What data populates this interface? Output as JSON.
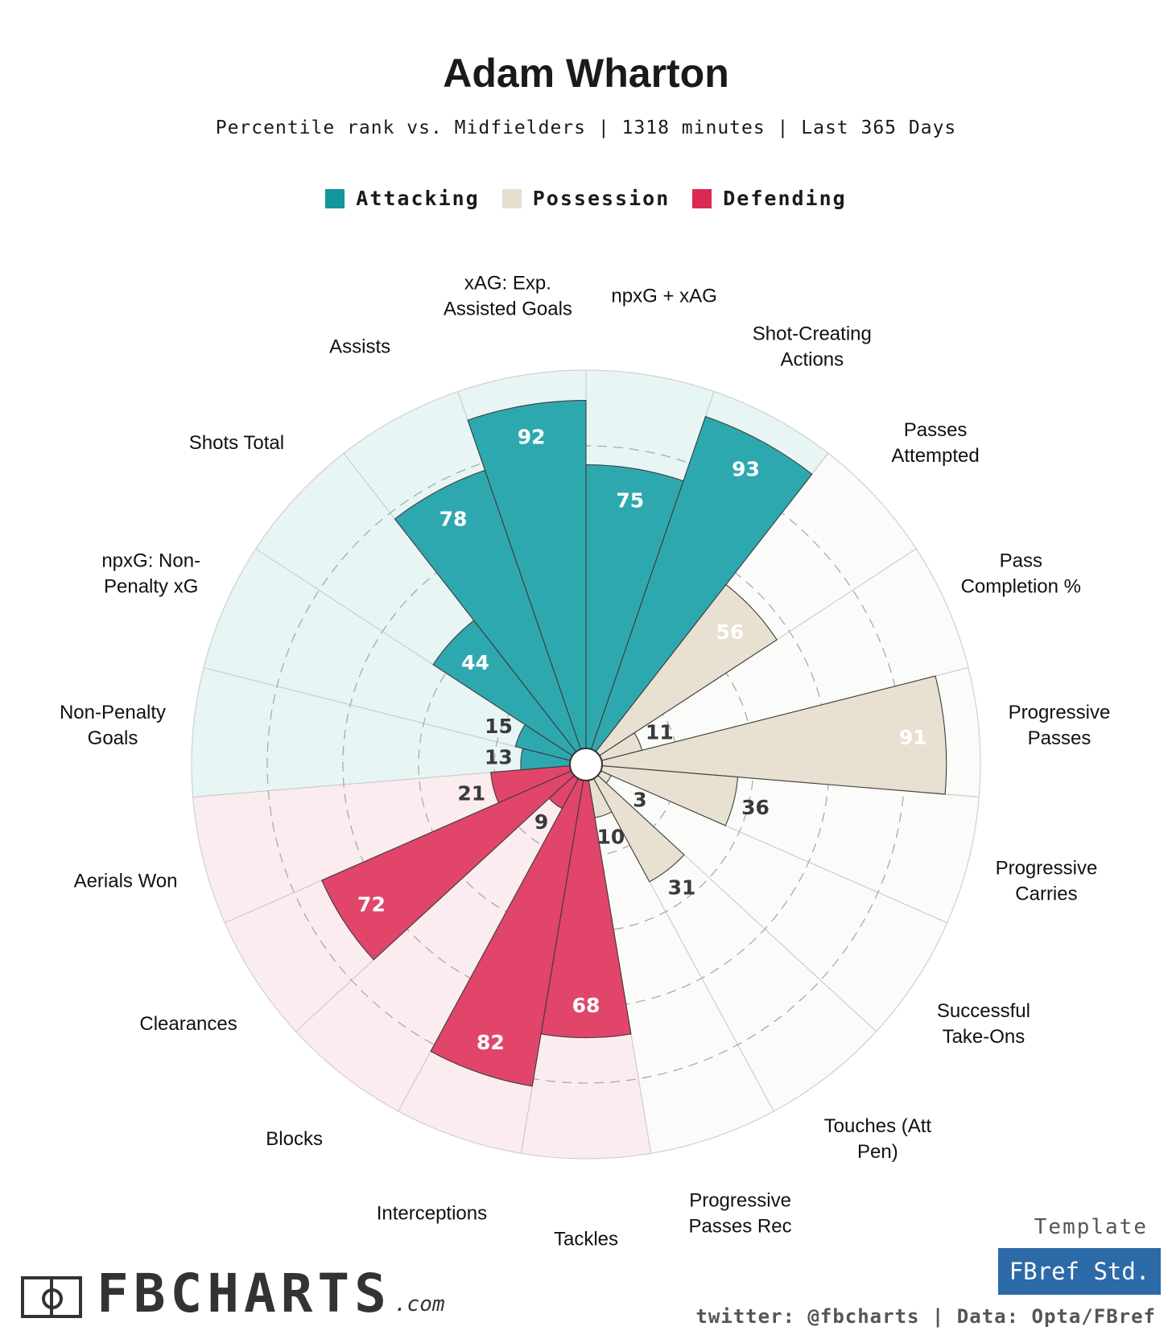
{
  "title": "Adam Wharton",
  "subtitle": "Percentile rank vs. Midfielders | 1318 minutes | Last 365 Days",
  "legend": {
    "attacking": "Attacking",
    "possession": "Possession",
    "defending": "Defending"
  },
  "colors": {
    "attacking": "#2ea8af",
    "possession": "#e8e0d0",
    "defending": "#e2456a",
    "attacking_bg": "#e8f5f5",
    "possession_bg": "#fbfbf9",
    "defending_bg": "#fbecf0"
  },
  "chart_data": {
    "type": "polar-bar",
    "max": 100,
    "categories": [
      {
        "label": "npxG + xAG",
        "value": 75,
        "group": "attacking"
      },
      {
        "label": "Shot-Creating Actions",
        "value": 93,
        "group": "attacking"
      },
      {
        "label": "Passes Attempted",
        "value": 56,
        "group": "possession"
      },
      {
        "label": "Pass Completion %",
        "value": 11,
        "group": "possession"
      },
      {
        "label": "Progressive Passes",
        "value": 91,
        "group": "possession"
      },
      {
        "label": "Progressive Carries",
        "value": 36,
        "group": "possession"
      },
      {
        "label": "Successful Take-Ons",
        "value": 3,
        "group": "possession"
      },
      {
        "label": "Touches (Att Pen)",
        "value": 31,
        "group": "possession"
      },
      {
        "label": "Progressive Passes Rec",
        "value": 10,
        "group": "possession"
      },
      {
        "label": "Tackles",
        "value": 68,
        "group": "defending"
      },
      {
        "label": "Interceptions",
        "value": 82,
        "group": "defending"
      },
      {
        "label": "Blocks",
        "value": 9,
        "group": "defending"
      },
      {
        "label": "Clearances",
        "value": 72,
        "group": "defending"
      },
      {
        "label": "Aerials Won",
        "value": 21,
        "group": "defending"
      },
      {
        "label": "Non-Penalty Goals",
        "value": 13,
        "group": "attacking"
      },
      {
        "label": "npxG: Non-Penalty xG",
        "value": 15,
        "group": "attacking"
      },
      {
        "label": "Shots Total",
        "value": 44,
        "group": "attacking"
      },
      {
        "label": "Assists",
        "value": 78,
        "group": "attacking"
      },
      {
        "label": "xAG: Exp. Assisted Goals",
        "value": 92,
        "group": "attacking"
      }
    ]
  },
  "brand": {
    "name": "FBCHARTS",
    "suffix": ".com"
  },
  "template": {
    "label": "Template",
    "name": "FBref Std."
  },
  "credit": "twitter: @fbcharts | Data: Opta/FBref"
}
